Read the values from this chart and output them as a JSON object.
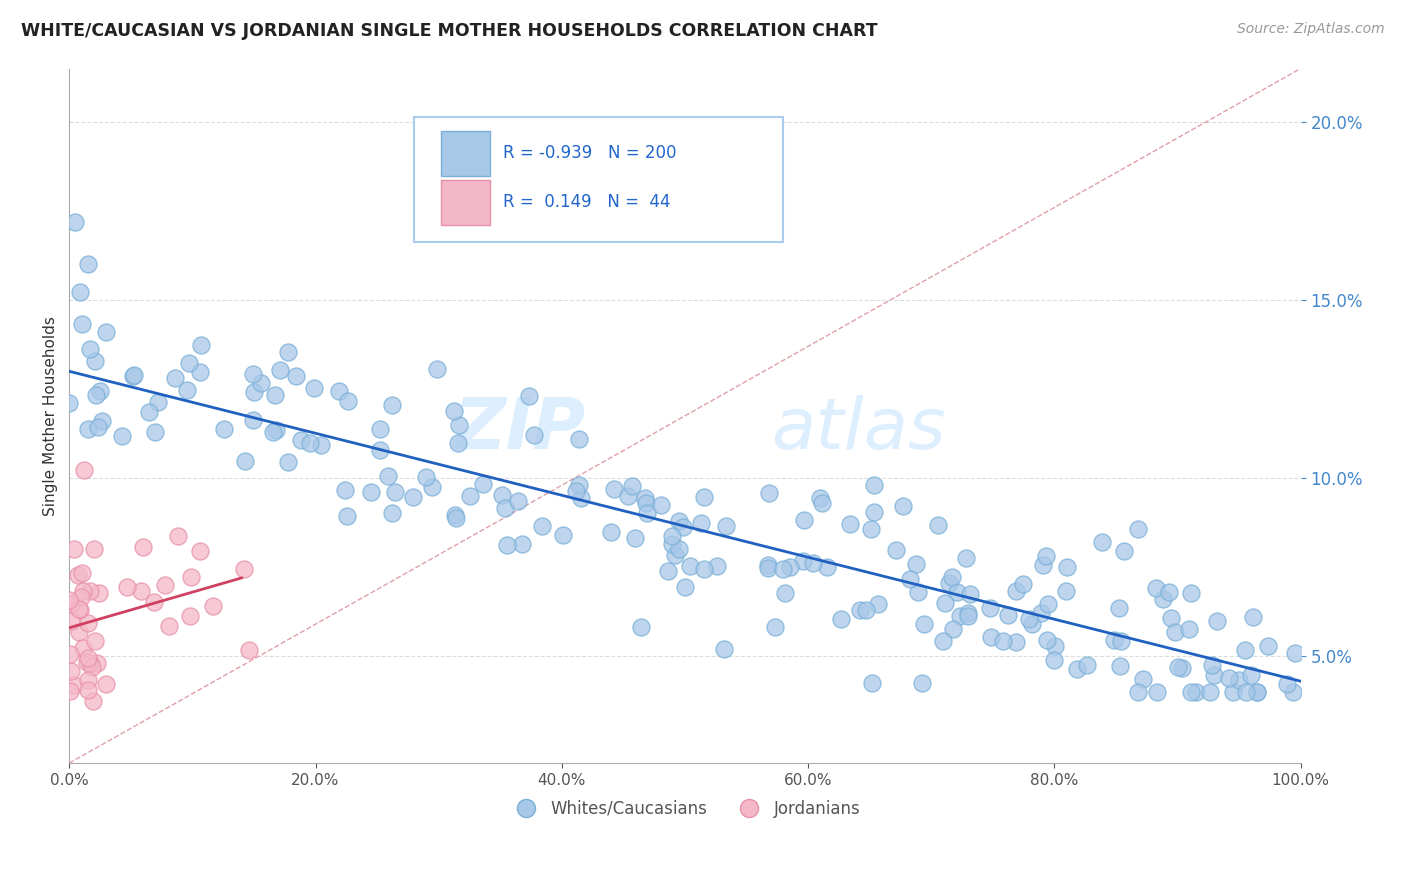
{
  "title": "WHITE/CAUCASIAN VS JORDANIAN SINGLE MOTHER HOUSEHOLDS CORRELATION CHART",
  "source": "Source: ZipAtlas.com",
  "ylabel_label": "Single Mother Households",
  "legend_labels": [
    "Whites/Caucasians",
    "Jordanians"
  ],
  "legend_R": [
    -0.939,
    0.149
  ],
  "legend_N": [
    200,
    44
  ],
  "blue_color": "#a8c8e8",
  "blue_edge_color": "#7ab0d8",
  "pink_color": "#f4b8c8",
  "pink_edge_color": "#e890a8",
  "blue_line_color": "#2060c0",
  "pink_line_color": "#d04060",
  "diag_color": "#e0a0a8",
  "watermark_zip": "ZIP",
  "watermark_atlas": "atlas",
  "xlim": [
    0,
    100
  ],
  "ylim": [
    2.0,
    21.5
  ],
  "yticks": [
    5,
    10,
    15,
    20
  ],
  "xticks": [
    0,
    20,
    40,
    60,
    80,
    100
  ],
  "blue_line_x0": 0,
  "blue_line_x1": 100,
  "blue_line_y0": 13.0,
  "blue_line_y1": 4.3,
  "pink_line_x0": 0,
  "pink_line_x1": 14,
  "pink_line_y0": 5.8,
  "pink_line_y1": 7.2
}
